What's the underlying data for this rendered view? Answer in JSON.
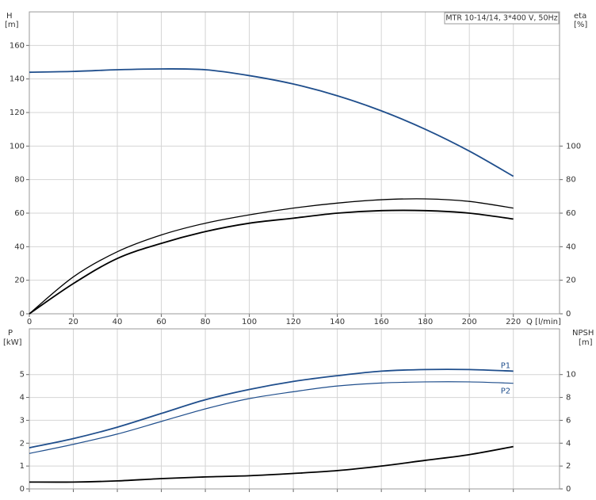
{
  "chart_data": [
    {
      "type": "line",
      "title": "MTR 10-14/14, 3*400 V, 50Hz",
      "ylabel": "H",
      "yunit": "[m]",
      "y2label": "eta",
      "y2unit": "[%]",
      "xlabel": "Q [l/min]",
      "x": [
        0,
        20,
        40,
        60,
        80,
        100,
        120,
        140,
        160,
        180,
        200,
        220
      ],
      "xlim": [
        0,
        241
      ],
      "xticks": [
        0,
        20,
        40,
        60,
        80,
        100,
        120,
        140,
        160,
        180,
        200,
        220
      ],
      "ylim": [
        0,
        180
      ],
      "yticks": [
        0,
        20,
        40,
        60,
        80,
        100,
        120,
        140,
        160
      ],
      "y2lim": [
        0,
        180
      ],
      "y2ticks": [
        0,
        20,
        40,
        60,
        80,
        100
      ],
      "grid": true,
      "series": [
        {
          "color": "#1f4e8c",
          "line_width": 1.8,
          "values": [
            144,
            144.5,
            145.5,
            146,
            145.5,
            142,
            137,
            130,
            121,
            110,
            97,
            82
          ]
        },
        {
          "color": "#000000",
          "line_width": 1.3,
          "axis": "y2",
          "values": [
            0,
            22,
            37,
            47,
            54,
            59,
            63,
            66,
            68,
            68.5,
            67,
            63
          ]
        },
        {
          "color": "#000000",
          "line_width": 1.8,
          "axis": "y2",
          "values": [
            0,
            18,
            33,
            42,
            49,
            54,
            57,
            60,
            61.5,
            61.5,
            60,
            56.5
          ]
        }
      ]
    },
    {
      "type": "line",
      "ylabel": "P",
      "yunit": "[kW]",
      "y2label": "NPSH",
      "y2unit": "[m]",
      "x": [
        0,
        20,
        40,
        60,
        80,
        100,
        120,
        140,
        160,
        180,
        200,
        220
      ],
      "xlim": [
        0,
        241
      ],
      "xticks": [
        0,
        20,
        40,
        60,
        80,
        100,
        120,
        140,
        160,
        180,
        200,
        220
      ],
      "ylim": [
        0,
        7
      ],
      "yticks": [
        0,
        1,
        2,
        3,
        4,
        5
      ],
      "y2lim": [
        0,
        14
      ],
      "y2ticks": [
        0,
        2,
        4,
        6,
        8,
        10
      ],
      "grid": true,
      "series": [
        {
          "name": "P1",
          "color": "#1f4e8c",
          "line_width": 1.8,
          "values": [
            1.8,
            2.2,
            2.7,
            3.3,
            3.9,
            4.35,
            4.7,
            4.95,
            5.15,
            5.22,
            5.22,
            5.15
          ]
        },
        {
          "name": "P2",
          "color": "#1f4e8c",
          "line_width": 1.2,
          "values": [
            1.55,
            1.95,
            2.4,
            2.95,
            3.5,
            3.95,
            4.25,
            4.5,
            4.63,
            4.68,
            4.68,
            4.62
          ]
        },
        {
          "color": "#000000",
          "line_width": 1.8,
          "axis": "y2",
          "values": [
            0.6,
            0.6,
            0.7,
            0.9,
            1.05,
            1.15,
            1.35,
            1.6,
            2.0,
            2.5,
            3.0,
            3.7
          ]
        }
      ]
    }
  ]
}
